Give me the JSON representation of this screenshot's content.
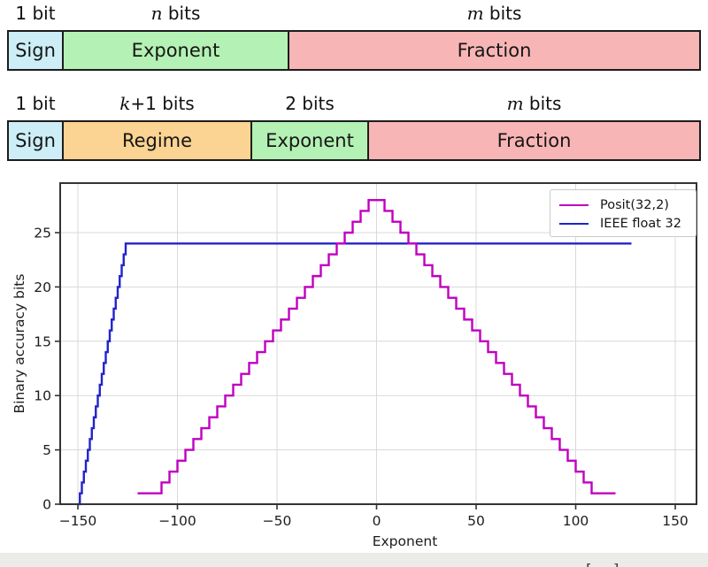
{
  "float_row": {
    "fields": [
      {
        "name": "Sign",
        "bits_italic": "",
        "bits_rest": "1 bit",
        "color": "#cdeef6"
      },
      {
        "name": "Exponent",
        "bits_italic": "n",
        "bits_rest": " bits",
        "color": "#b4f1b4"
      },
      {
        "name": "Fraction",
        "bits_italic": "m",
        "bits_rest": " bits",
        "color": "#f8b5b5"
      }
    ]
  },
  "posit_row": {
    "fields": [
      {
        "name": "Sign",
        "bits_italic": "",
        "bits_rest": "1 bit",
        "color": "#cdeef6"
      },
      {
        "name": "Regime",
        "bits_italic": "k",
        "bits_rest": "+1 bits",
        "color": "#fbd392"
      },
      {
        "name": "Exponent",
        "bits_italic": "",
        "bits_rest": "2 bits",
        "color": "#b4f1b4"
      },
      {
        "name": "Fraction",
        "bits_italic": "m",
        "bits_rest": " bits",
        "color": "#f8b5b5"
      }
    ]
  },
  "chart_data": {
    "type": "line",
    "subtype": "step-staircase",
    "title": "",
    "xlabel": "Exponent",
    "ylabel": "Binary accuracy bits",
    "xlim": [
      -161,
      160
    ],
    "ylim": [
      0,
      29.6
    ],
    "x_ticks": [
      -150,
      -100,
      -50,
      0,
      50,
      100,
      150
    ],
    "y_ticks": [
      0,
      5,
      10,
      15,
      20,
      25
    ],
    "grid": true,
    "legend_position": "upper right",
    "grid_color": "#d9d9d9",
    "spine_color": "#333333",
    "series": [
      {
        "name": "Posit(32,2)",
        "color": "#c000c0",
        "steps": [
          [
            -120,
            -108,
            1
          ],
          [
            -108,
            -104,
            2
          ],
          [
            -104,
            -100,
            3
          ],
          [
            -100,
            -96,
            4
          ],
          [
            -96,
            -92,
            5
          ],
          [
            -92,
            -88,
            6
          ],
          [
            -88,
            -84,
            7
          ],
          [
            -84,
            -80,
            8
          ],
          [
            -80,
            -76,
            9
          ],
          [
            -76,
            -72,
            10
          ],
          [
            -72,
            -68,
            11
          ],
          [
            -68,
            -64,
            12
          ],
          [
            -64,
            -60,
            13
          ],
          [
            -60,
            -56,
            14
          ],
          [
            -56,
            -52,
            15
          ],
          [
            -52,
            -48,
            16
          ],
          [
            -48,
            -44,
            17
          ],
          [
            -44,
            -40,
            18
          ],
          [
            -40,
            -36,
            19
          ],
          [
            -36,
            -32,
            20
          ],
          [
            -32,
            -28,
            21
          ],
          [
            -28,
            -24,
            22
          ],
          [
            -24,
            -20,
            23
          ],
          [
            -20,
            -16,
            24
          ],
          [
            -16,
            -12,
            25
          ],
          [
            -12,
            -8,
            26
          ],
          [
            -8,
            -4,
            27
          ],
          [
            -4,
            4,
            28
          ],
          [
            4,
            8,
            27
          ],
          [
            8,
            12,
            26
          ],
          [
            12,
            16,
            25
          ],
          [
            16,
            20,
            24
          ],
          [
            20,
            24,
            23
          ],
          [
            24,
            28,
            22
          ],
          [
            28,
            32,
            21
          ],
          [
            32,
            36,
            20
          ],
          [
            36,
            40,
            19
          ],
          [
            40,
            44,
            18
          ],
          [
            44,
            48,
            17
          ],
          [
            48,
            52,
            16
          ],
          [
            52,
            56,
            15
          ],
          [
            56,
            60,
            14
          ],
          [
            60,
            64,
            13
          ],
          [
            64,
            68,
            12
          ],
          [
            68,
            72,
            11
          ],
          [
            72,
            76,
            10
          ],
          [
            76,
            80,
            9
          ],
          [
            80,
            84,
            8
          ],
          [
            84,
            88,
            7
          ],
          [
            88,
            92,
            6
          ],
          [
            92,
            96,
            5
          ],
          [
            96,
            100,
            4
          ],
          [
            100,
            104,
            3
          ],
          [
            104,
            108,
            2
          ],
          [
            108,
            120,
            1
          ]
        ]
      },
      {
        "name": "IEEE float 32",
        "color": "#2222cc",
        "steps": [
          [
            -150,
            -149,
            0
          ],
          [
            -149,
            -148,
            1
          ],
          [
            -148,
            -147,
            2
          ],
          [
            -147,
            -146,
            3
          ],
          [
            -146,
            -145,
            4
          ],
          [
            -145,
            -144,
            5
          ],
          [
            -144,
            -143,
            6
          ],
          [
            -143,
            -142,
            7
          ],
          [
            -142,
            -141,
            8
          ],
          [
            -141,
            -140,
            9
          ],
          [
            -140,
            -139,
            10
          ],
          [
            -139,
            -138,
            11
          ],
          [
            -138,
            -137,
            12
          ],
          [
            -137,
            -136,
            13
          ],
          [
            -136,
            -135,
            14
          ],
          [
            -135,
            -134,
            15
          ],
          [
            -134,
            -133,
            16
          ],
          [
            -133,
            -132,
            17
          ],
          [
            -132,
            -131,
            18
          ],
          [
            -131,
            -130,
            19
          ],
          [
            -130,
            -129,
            20
          ],
          [
            -129,
            -128,
            21
          ],
          [
            -128,
            -127,
            22
          ],
          [
            -127,
            -126,
            23
          ],
          [
            -126,
            128,
            24
          ]
        ]
      }
    ]
  },
  "footer": {
    "partial_citation": "[...]"
  }
}
